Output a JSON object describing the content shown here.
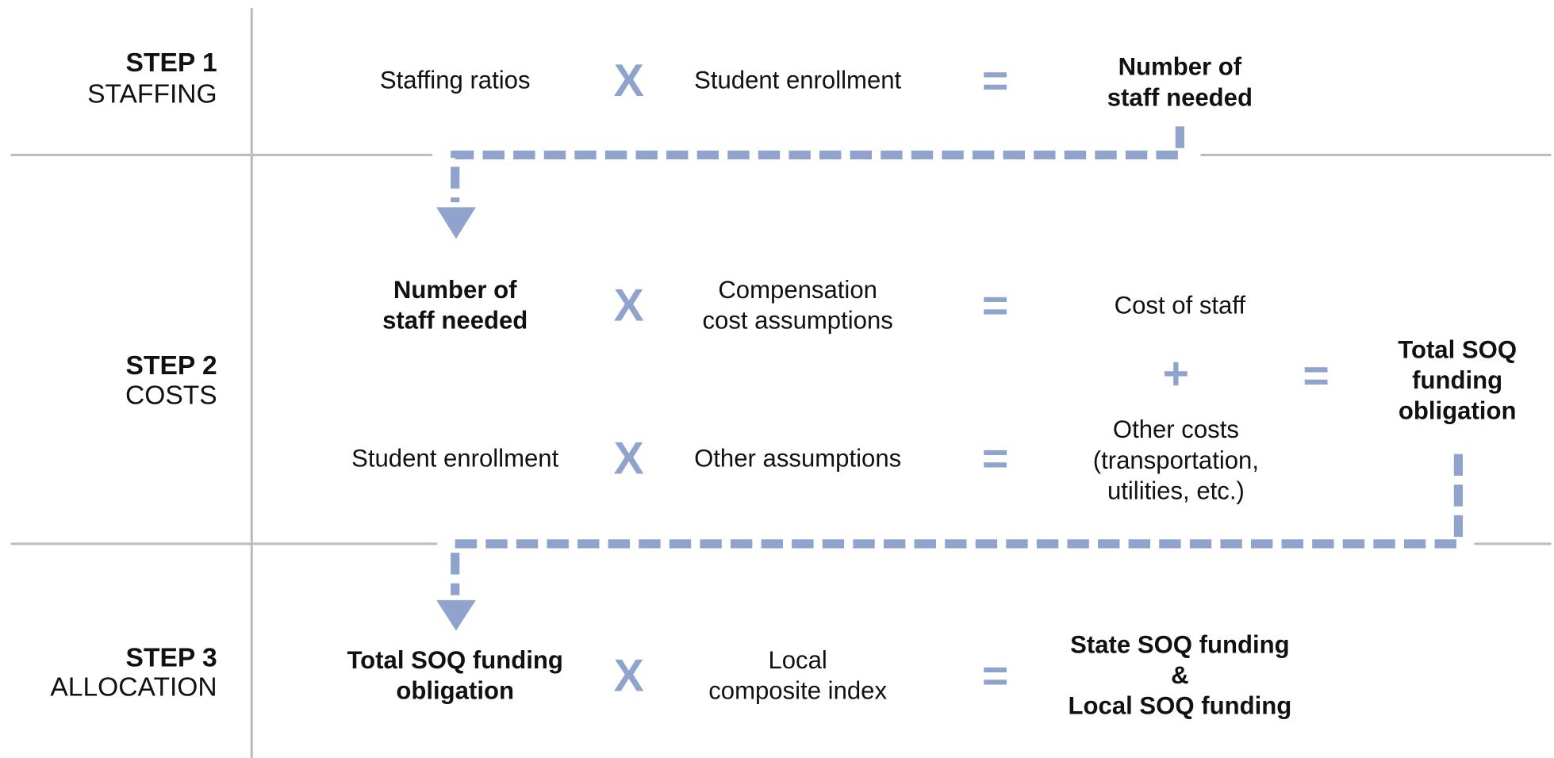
{
  "steps": [
    {
      "label": "STEP 1",
      "name": "STAFFING",
      "rows": [
        {
          "a": [
            "Staffing ratios"
          ],
          "op1": "X",
          "b": [
            "Student enrollment"
          ],
          "op2": "=",
          "result": [
            "Number of",
            "staff needed"
          ]
        }
      ]
    },
    {
      "label": "STEP 2",
      "name": "COSTS",
      "rows": [
        {
          "a": [
            "Number of",
            "staff needed"
          ],
          "op1": "X",
          "b": [
            "Compensation",
            "cost assumptions"
          ],
          "op2": "=",
          "result": [
            "Cost of staff"
          ]
        },
        {
          "a": [
            "Student enrollment"
          ],
          "op1": "X",
          "b": [
            "Other assumptions"
          ],
          "op2": "=",
          "result": [
            "Other costs",
            "(transportation,",
            "utilities, etc.)"
          ]
        }
      ],
      "combine": "+",
      "equals": "=",
      "total": [
        "Total SOQ",
        "funding",
        "obligation"
      ]
    },
    {
      "label": "STEP 3",
      "name": "ALLOCATION",
      "rows": [
        {
          "a": [
            "Total SOQ funding",
            "obligation"
          ],
          "op1": "X",
          "b": [
            "Local",
            "composite index"
          ],
          "op2": "=",
          "result": [
            "State SOQ funding",
            "&",
            "Local SOQ funding"
          ]
        }
      ]
    }
  ]
}
